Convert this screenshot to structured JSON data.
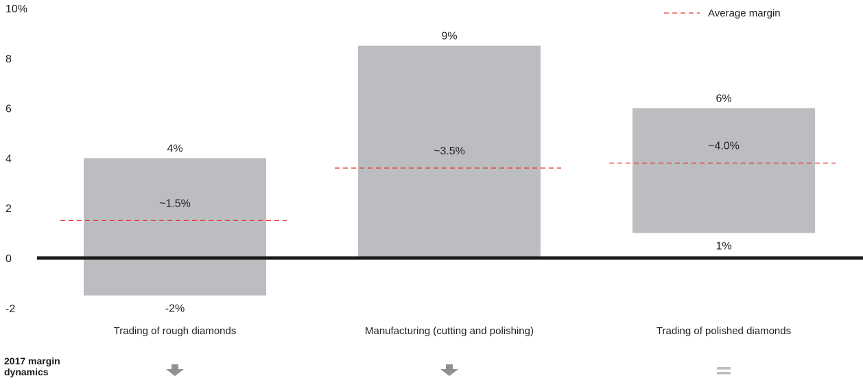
{
  "chart_data": {
    "type": "bar",
    "subtype": "floating-range",
    "y_tick_labels": [
      "10%",
      "8",
      "6",
      "4",
      "2",
      "0",
      "-2"
    ],
    "y_ticks": [
      10,
      8,
      6,
      4,
      2,
      0,
      -2
    ],
    "ylim": [
      -2,
      10
    ],
    "grid": false,
    "legend": {
      "position": "top-right",
      "entries": [
        {
          "label": "Average margin",
          "style": "dashed",
          "color": "#e53935"
        }
      ]
    },
    "categories": [
      "Trading of rough diamonds",
      "Manufacturing (cutting and polishing)",
      "Trading of polished diamonds"
    ],
    "ranges": [
      {
        "low": -1.5,
        "high": 4,
        "low_label": "-2%",
        "high_label": "4%",
        "average": 1.5,
        "average_label": "~1.5%"
      },
      {
        "low": 0,
        "high": 8.5,
        "low_label": "",
        "high_label": "9%",
        "average": 3.6,
        "average_label": "~3.5%"
      },
      {
        "low": 1,
        "high": 6,
        "low_label": "1%",
        "high_label": "6%",
        "average": 3.8,
        "average_label": "~4.0%"
      }
    ],
    "colors": {
      "bar": "#bcbdc0",
      "average_line": "#e53935",
      "zero_line": "#1a1a1a"
    }
  },
  "dynamics": {
    "title_line1": "2017 margin",
    "title_line2": "dynamics",
    "indicators": [
      {
        "category": "Trading of rough diamonds",
        "icon": "arrow-down-icon",
        "color": "#8f9094"
      },
      {
        "category": "Manufacturing (cutting and polishing)",
        "icon": "arrow-down-icon",
        "color": "#8f9094"
      },
      {
        "category": "Trading of polished diamonds",
        "icon": "equals-icon",
        "color": "#bcbdc0"
      }
    ]
  }
}
